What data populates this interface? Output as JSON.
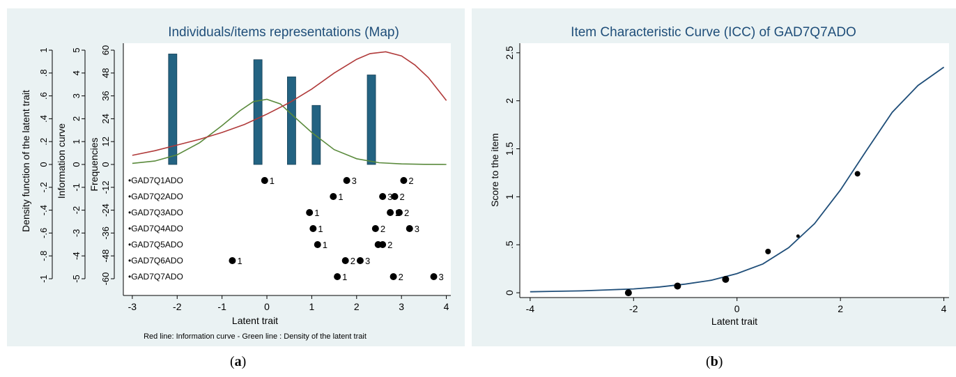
{
  "chart_data": [
    {
      "panel_label": "a",
      "type": "bar",
      "title": "Individuals/items representations (Map)",
      "xlabel": "Latent trait",
      "note": "Red line: Information curve - Green line : Density of the latent trait",
      "xticks": [
        "-3",
        "-2",
        "-1",
        "0",
        "1",
        "2",
        "3",
        "4"
      ],
      "xlim": [
        -3.2,
        4.1
      ],
      "axes": [
        {
          "label": "Density function of the latent trait",
          "ticks": [
            "1",
            ".8",
            ".6",
            ".4",
            ".2",
            "0",
            "-.2",
            "-.4",
            "-.6",
            "-.8",
            "-1"
          ]
        },
        {
          "label": "Information curve",
          "ticks": [
            "5",
            "4",
            "3",
            "2",
            "1",
            "0",
            "-1",
            "-2",
            "-3",
            "-4",
            "-5"
          ]
        },
        {
          "label": "Frequencies",
          "ticks": [
            "60",
            "48",
            "36",
            "24",
            "12",
            "0",
            "-12",
            "-24",
            "-36",
            "-48",
            "-60"
          ]
        }
      ],
      "frequency_bars": {
        "color": "#236382",
        "x": [
          -2.1,
          -0.2,
          0.55,
          1.1,
          2.33
        ],
        "values": [
          58,
          55,
          46,
          31,
          47
        ]
      },
      "curves": [
        {
          "color": "#5a8a3c",
          "x": [
            -3,
            -2.5,
            -2,
            -1.5,
            -1,
            -0.6,
            -0.3,
            0,
            0.3,
            0.6,
            1,
            1.5,
            2,
            2.5,
            3,
            3.5,
            4
          ],
          "y": [
            0.01,
            0.03,
            0.085,
            0.19,
            0.34,
            0.47,
            0.55,
            0.57,
            0.53,
            0.42,
            0.28,
            0.13,
            0.05,
            0.015,
            0.005,
            0.001,
            0.0
          ]
        },
        {
          "color": "#b03a3a",
          "x": [
            -3,
            -2.5,
            -2,
            -1.5,
            -1,
            -0.5,
            0,
            0.5,
            1,
            1.5,
            2,
            2.3,
            2.65,
            3,
            3.3,
            3.6,
            4
          ],
          "y": [
            0.4,
            0.6,
            0.85,
            1.1,
            1.4,
            1.75,
            2.2,
            2.7,
            3.3,
            4.0,
            4.6,
            4.85,
            4.93,
            4.75,
            4.35,
            3.8,
            2.8
          ]
        }
      ],
      "items": [
        {
          "name": "GAD7Q1ADO",
          "points": [
            {
              "x": -0.05,
              "label": "1"
            },
            {
              "x": 1.78,
              "label": "3"
            },
            {
              "x": 3.05,
              "label": "2"
            }
          ]
        },
        {
          "name": "GAD7Q2ADO",
          "points": [
            {
              "x": 1.48,
              "label": "1"
            },
            {
              "x": 2.58,
              "label": "3"
            },
            {
              "x": 2.85,
              "label": "2"
            }
          ]
        },
        {
          "name": "GAD7Q3ADO",
          "points": [
            {
              "x": 0.95,
              "label": "1"
            },
            {
              "x": 2.75,
              "label": "2"
            },
            {
              "x": 2.95,
              "label": "2"
            }
          ]
        },
        {
          "name": "GAD7Q4ADO",
          "points": [
            {
              "x": 1.03,
              "label": "1"
            },
            {
              "x": 2.42,
              "label": "2"
            },
            {
              "x": 3.18,
              "label": "3"
            }
          ]
        },
        {
          "name": "GAD7Q5ADO",
          "points": [
            {
              "x": 1.13,
              "label": "1"
            },
            {
              "x": 2.48,
              "label": ""
            },
            {
              "x": 2.58,
              "label": "2"
            }
          ]
        },
        {
          "name": "GAD7Q6ADO",
          "points": [
            {
              "x": -0.77,
              "label": "1"
            },
            {
              "x": 1.75,
              "label": "2"
            },
            {
              "x": 2.08,
              "label": "3"
            }
          ]
        },
        {
          "name": "GAD7Q7ADO",
          "points": [
            {
              "x": 1.57,
              "label": "1"
            },
            {
              "x": 2.82,
              "label": "2"
            },
            {
              "x": 3.72,
              "label": "3"
            }
          ]
        }
      ]
    },
    {
      "panel_label": "b",
      "type": "line",
      "title": "Item Characteristic Curve (ICC) of GAD7Q7ADO",
      "xlabel": "Latent trait",
      "ylabel": "Score to the item",
      "xlim": [
        -4.2,
        4.1
      ],
      "ylim": [
        -0.05,
        2.6
      ],
      "xticks": [
        "-4",
        "-2",
        "0",
        "2",
        "4"
      ],
      "xtick_values": [
        -4,
        -2,
        0,
        2,
        4
      ],
      "yticks": [
        "0",
        ".5",
        "1",
        "1.5",
        "2",
        "2.5"
      ],
      "ytick_values": [
        0,
        0.5,
        1,
        1.5,
        2,
        2.5
      ],
      "curve": {
        "color": "#1f4e79",
        "x": [
          -4,
          -3.5,
          -3,
          -2.5,
          -2,
          -1.5,
          -1,
          -0.5,
          0,
          0.5,
          1,
          1.5,
          2,
          2.5,
          3,
          3.5,
          4
        ],
        "y": [
          0.01,
          0.015,
          0.02,
          0.03,
          0.04,
          0.06,
          0.09,
          0.13,
          0.2,
          0.3,
          0.47,
          0.72,
          1.07,
          1.48,
          1.88,
          2.16,
          2.35
        ]
      },
      "points": [
        {
          "x": -2.1,
          "y": 0.0,
          "size": "large"
        },
        {
          "x": -1.15,
          "y": 0.07,
          "size": "large"
        },
        {
          "x": -0.22,
          "y": 0.14,
          "size": "large"
        },
        {
          "x": 0.6,
          "y": 0.43,
          "size": "medium"
        },
        {
          "x": 1.18,
          "y": 0.59,
          "size": "small"
        },
        {
          "x": 2.33,
          "y": 1.24,
          "size": "medium"
        }
      ]
    }
  ]
}
